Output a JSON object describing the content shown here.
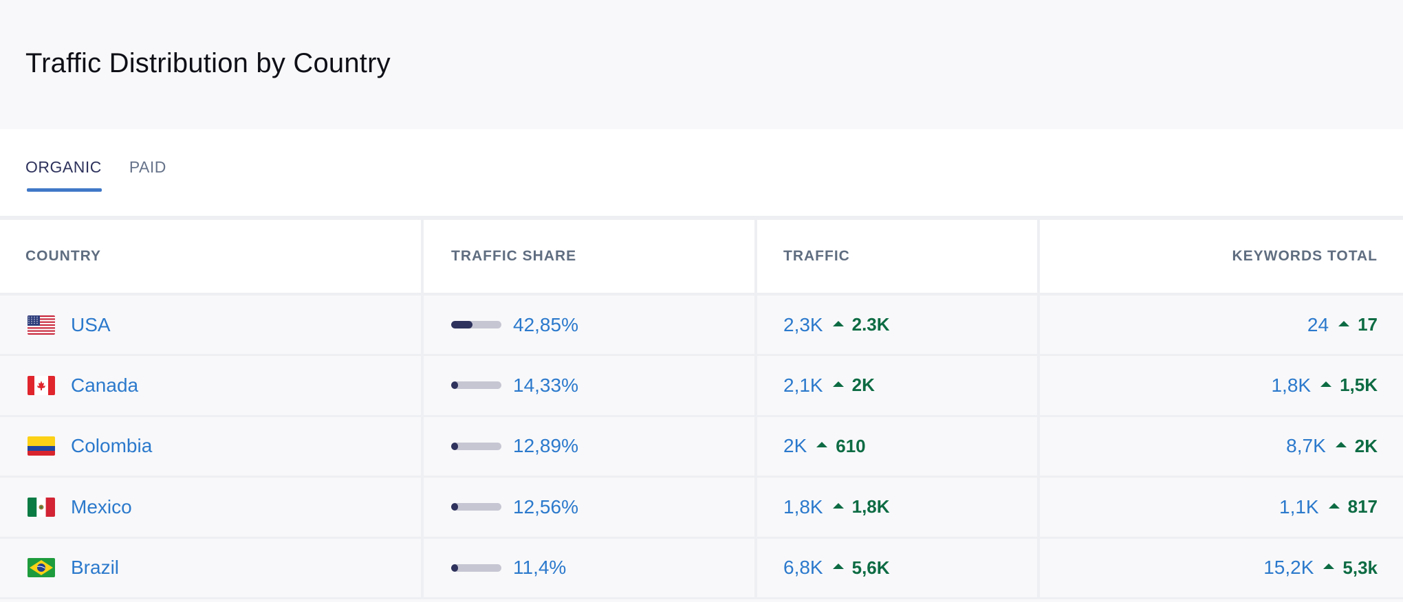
{
  "title": "Traffic Distribution by Country",
  "tabs": [
    {
      "label": "ORGANIC",
      "active": true
    },
    {
      "label": "PAID",
      "active": false
    }
  ],
  "columns": {
    "country": "COUNTRY",
    "share": "TRAFFIC SHARE",
    "traffic": "TRAFFIC",
    "keywords": "KEYWORDS TOTAL"
  },
  "colors": {
    "accent": "#3f78c7",
    "link": "#2b79cc",
    "positive": "#0d6b43",
    "bar_fill": "#2e325c",
    "bar_track": "#c6c6d3"
  },
  "rows": [
    {
      "country": "USA",
      "flag": "us-flag-icon",
      "share": "42,85%",
      "share_value": 0.4285,
      "traffic": "2,3K",
      "traffic_delta": "2.3K",
      "keywords": "24",
      "keywords_delta": "17"
    },
    {
      "country": "Canada",
      "flag": "ca-flag-icon",
      "share": "14,33%",
      "share_value": 0.1433,
      "traffic": "2,1K",
      "traffic_delta": "2K",
      "keywords": "1,8K",
      "keywords_delta": "1,5K"
    },
    {
      "country": "Colombia",
      "flag": "co-flag-icon",
      "share": "12,89%",
      "share_value": 0.1289,
      "traffic": "2K",
      "traffic_delta": "610",
      "keywords": "8,7K",
      "keywords_delta": "2K"
    },
    {
      "country": "Mexico",
      "flag": "mx-flag-icon",
      "share": "12,56%",
      "share_value": 0.1256,
      "traffic": "1,8K",
      "traffic_delta": "1,8K",
      "keywords": "1,1K",
      "keywords_delta": "817"
    },
    {
      "country": "Brazil",
      "flag": "br-flag-icon",
      "share": "11,4%",
      "share_value": 0.114,
      "traffic": "6,8K",
      "traffic_delta": "5,6K",
      "keywords": "15,2K",
      "keywords_delta": "5,3k"
    }
  ]
}
